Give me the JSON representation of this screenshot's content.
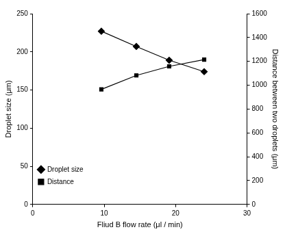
{
  "chart_data": {
    "type": "line",
    "x": [
      9.6,
      14.5,
      19.1,
      24.0
    ],
    "xlabel": "Fliud B flow rate (μl / min)",
    "ylabel": "Droplet size (μm)",
    "y2label": "Distance between two droplets (μm)",
    "xlim": [
      0,
      30
    ],
    "xticks": [
      0,
      10,
      20,
      30
    ],
    "ylim": [
      0,
      250
    ],
    "yticks": [
      0,
      50,
      100,
      150,
      200,
      250
    ],
    "y2lim": [
      0,
      1600
    ],
    "y2ticks": [
      0,
      200,
      400,
      600,
      800,
      1000,
      1200,
      1400,
      1600
    ],
    "grid": false,
    "legend": "upper right",
    "series": [
      {
        "name": "Droplet size",
        "color": "#000000",
        "marker": "diamond",
        "line_style": "solid",
        "values": [
          227,
          207,
          189,
          174
        ]
      },
      {
        "name": "Distance",
        "color": "#000000",
        "marker": "square",
        "line_style": "solid",
        "axis": "y2",
        "values": [
          965,
          1082,
          1158,
          1215
        ]
      }
    ]
  }
}
